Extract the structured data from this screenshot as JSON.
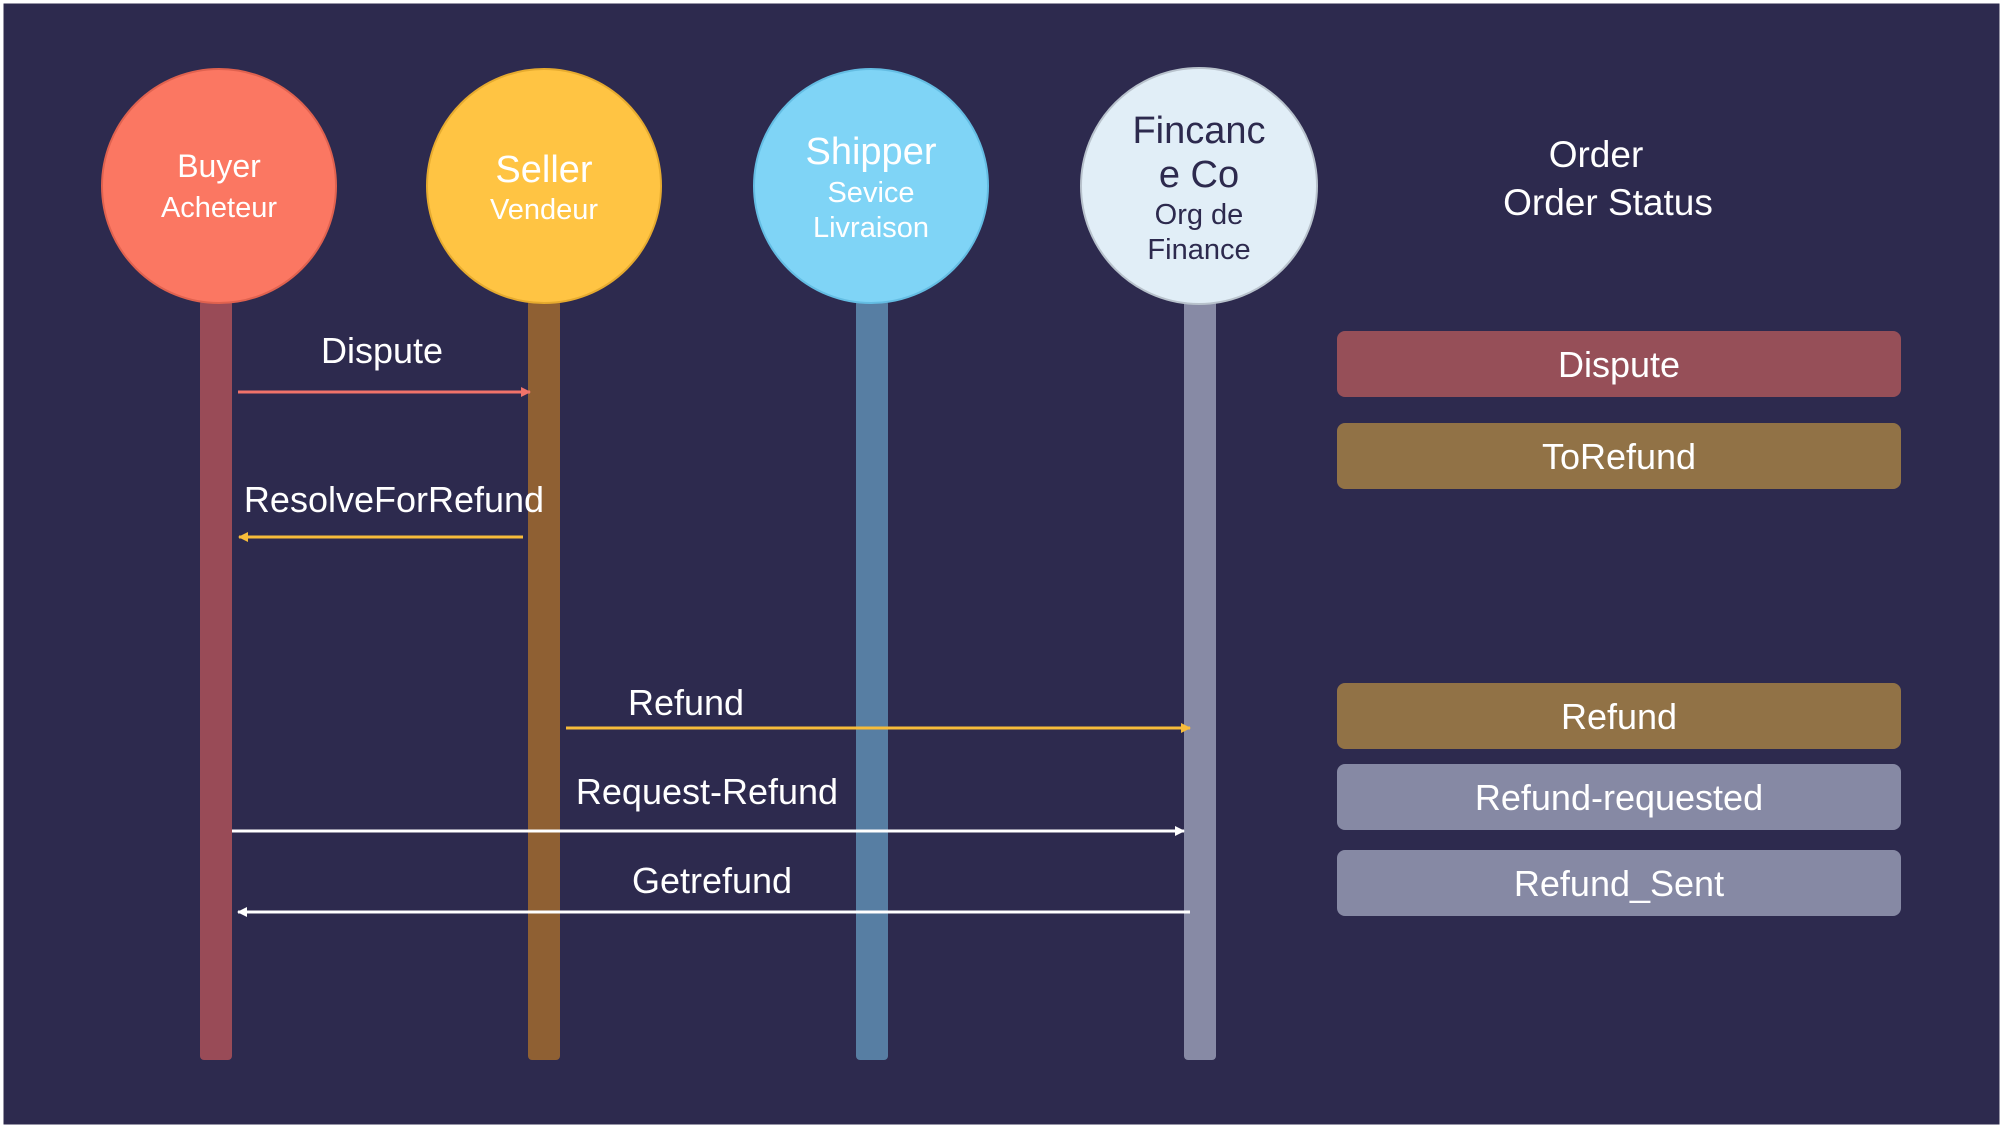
{
  "colors": {
    "background": "#2d2a4e",
    "frame": "#ffffff",
    "buyer": "#fb7762",
    "seller": "#ffc443",
    "shipper": "#7fd4f6",
    "finance": "#e1eef7",
    "buyer_lifeline": "#994b57",
    "seller_lifeline": "#8f6033",
    "shipper_lifeline": "#577ea3",
    "finance_lifeline": "#878aa5",
    "arrow_dispute": "#f1736a",
    "arrow_yellow": "#f7bc3a",
    "arrow_white": "#ffffff",
    "status_red": "#964f58",
    "status_brown": "#917246",
    "status_gray": "#8689a4",
    "text_light": "#ffffff",
    "text_dark": "#2d2a4e"
  },
  "actors": {
    "buyer": {
      "line1": "Buyer",
      "line2": "Acheteur"
    },
    "seller": {
      "line1": "Seller",
      "line2": "Vendeur"
    },
    "shipper": {
      "line1": "Shipper",
      "line2": "Sevice",
      "line3": "Livraison"
    },
    "finance": {
      "line1": "Fincanc",
      "line2": "e Co",
      "line3": "Org de",
      "line4": "Finance"
    }
  },
  "order": {
    "title": "Order",
    "subtitle": "Order Status"
  },
  "messages": {
    "dispute": "Dispute",
    "resolve": "ResolveForRefund",
    "refund": "Refund",
    "request_refund": "Request-Refund",
    "getrefund": "Getrefund"
  },
  "statuses": {
    "dispute": "Dispute",
    "torefund": "ToRefund",
    "refund": "Refund",
    "refund_requested": "Refund-requested",
    "refund_sent": "Refund_Sent"
  }
}
